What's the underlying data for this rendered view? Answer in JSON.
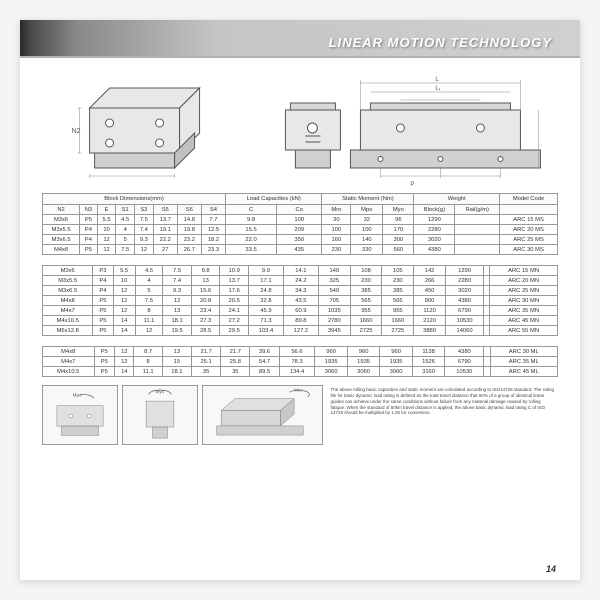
{
  "header": {
    "title": "LINEAR MOTION TECHNOLOGY"
  },
  "page_number": "14",
  "colors": {
    "page_bg": "#ffffff",
    "outer_bg": "#f5f5f5",
    "border": "#999999",
    "text": "#333333",
    "header_grad_start": "#2a2a2a",
    "header_grad_end": "#d0d0d0"
  },
  "table1": {
    "group_headers": [
      "Block Dimensions(mm)",
      "Load Capacities (kN)",
      "Static Moment (Nm)",
      "Weight",
      "Model Code"
    ],
    "group_spans": [
      8,
      2,
      3,
      2,
      1
    ],
    "cols": [
      "N2",
      "N3",
      "E",
      "S1",
      "S3",
      "S5",
      "S6",
      "S4",
      "C",
      "Co",
      "Mro",
      "Mpo",
      "Myo",
      "Block(g)",
      "Rail(g/m)",
      ""
    ],
    "rows": [
      [
        "M3x6",
        "P5",
        "5.5",
        "4.5",
        "7.5",
        "13.7",
        "14.8",
        "7.7",
        "9.8",
        "100",
        "30",
        "32",
        "96",
        "1290",
        " ",
        "ARC 15 MS"
      ],
      [
        "M3x5.5",
        "P4",
        "10",
        "4",
        "7.4",
        "19.1",
        "19.8",
        "12.5",
        "15.5",
        "209",
        "100",
        "100",
        "170",
        "2280",
        " ",
        "ARC 20 MS"
      ],
      [
        "M3x6.5",
        "P4",
        "12",
        "5",
        "9.3",
        "22.2",
        "23.2",
        "18.2",
        "22.0",
        "350",
        "160",
        "140",
        "300",
        "3020",
        " ",
        "ARC 25 MS"
      ],
      [
        "M4x8",
        "P5",
        "12",
        "7.5",
        "12",
        "27",
        "26.7",
        "23.3",
        "33.5",
        "435",
        "230",
        "330",
        "560",
        "4380",
        " ",
        "ARC 30 MS"
      ]
    ]
  },
  "table2": {
    "rows": [
      [
        "M3x6",
        "P3",
        "5.5",
        "4.5",
        "7.5",
        "9.8",
        "10.9",
        "9.9",
        "14.1",
        "140",
        "108",
        "105",
        "142",
        "1290",
        " ",
        "ARC 15 MN"
      ],
      [
        "M3x5.5",
        "P4",
        "10",
        "4",
        "7.4",
        "13",
        "13.7",
        "17.1",
        "24.2",
        "325",
        "230",
        "230",
        "266",
        "2280",
        " ",
        "ARC 20 MN"
      ],
      [
        "M3x6.5",
        "P4",
        "12",
        "5",
        "9.3",
        "15.6",
        "17.6",
        "24.8",
        "34.3",
        "540",
        "385",
        "385",
        "450",
        "3020",
        " ",
        "ARC 25 MN"
      ],
      [
        "M4x8",
        "P5",
        "12",
        "7.5",
        "12",
        "20.8",
        "20.5",
        "32.8",
        "43.5",
        "705",
        "565",
        "565",
        "800",
        "4380",
        " ",
        "ARC 30 MN"
      ],
      [
        "M4x7",
        "P5",
        "12",
        "8",
        "13",
        "23.4",
        "24.1",
        "45.9",
        "60.9",
        "1035",
        "955",
        "955",
        "1120",
        "6790",
        " ",
        "ARC 35 MN"
      ],
      [
        "M4x10.5",
        "P5",
        "14",
        "11.1",
        "18.1",
        "27.3",
        "27.2",
        "71.3",
        "89.8",
        "2780",
        "1660",
        "1660",
        "2120",
        "10530",
        " ",
        "ARC 45 MN"
      ],
      [
        "M6x12.8",
        "P5",
        "14",
        "12",
        "19.5",
        "28.5",
        "29.5",
        "103.4",
        "127.2",
        "3945",
        "2725",
        "2725",
        "3880",
        "14060",
        " ",
        "ARC 55 MN"
      ]
    ]
  },
  "table3": {
    "rows": [
      [
        "M4x8",
        "P5",
        "12",
        "8.7",
        "13",
        "21.7",
        "21.7",
        "39.6",
        "56.6",
        "960",
        "960",
        "960",
        "1138",
        "4380",
        " ",
        "ARC 30 ML"
      ],
      [
        "M4x7",
        "P5",
        "12",
        "8",
        "15",
        "25.1",
        "25.8",
        "54.7",
        "78.3",
        "1935",
        "1935",
        "1935",
        "1526",
        "6790",
        " ",
        "ARC 35 ML"
      ],
      [
        "M4x10.5",
        "P5",
        "14",
        "11.1",
        "18.1",
        "35",
        "35",
        "89.5",
        "134.4",
        "3060",
        "3060",
        "3060",
        "3160",
        "10530",
        " ",
        "ARC 45 ML"
      ]
    ]
  },
  "footer_note": "The above rolling basic capacities and static moment are calculated according to ISO14728 standard. The rating life for basic dynamic load rating is defined as the total travel distance that 90% of a group of identical linear guides can achieve under the same conditions without failure from any material damage caused by rolling fatigue. When the standard of 50km travel distance is applied, the above basic dynamic load rating C of ISO 14728 should be multiplied by 1.26 for conversion.",
  "diagram_labels": {
    "n2": "N2",
    "s": "S",
    "l": "L"
  }
}
